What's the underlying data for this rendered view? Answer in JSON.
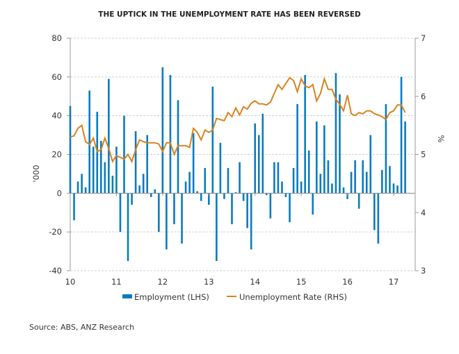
{
  "chart_data": {
    "type": "bar+line",
    "title": "THE UPTICK IN THE UNEMPLOYMENT RATE HAS BEEN REVERSED",
    "source": "Source: ABS, ANZ Research",
    "ylabel_left": "'000",
    "ylabel_right": "%",
    "ylim_left": [
      -40,
      80
    ],
    "ylim_right": [
      3,
      7
    ],
    "yticks_left": [
      "80",
      "60",
      "40",
      "20",
      "0",
      "-20",
      "-40"
    ],
    "yticks_right": [
      "7",
      "6",
      "5",
      "4",
      "3"
    ],
    "xticks": [
      "10",
      "11",
      "12",
      "13",
      "14",
      "15",
      "16",
      "17"
    ],
    "grid": true,
    "legend_position": "bottom",
    "series": [
      {
        "name": "Employment (LHS)",
        "type": "bar",
        "color": "#0a7bbf",
        "values": [
          45,
          -14,
          6,
          10,
          3,
          53,
          24,
          42,
          27,
          16,
          59,
          9,
          24,
          -20,
          40,
          -35,
          -6,
          32,
          4,
          10,
          30,
          -2,
          2,
          -20,
          65,
          -29,
          61,
          -16,
          48,
          -26,
          6,
          11,
          31,
          1,
          -4,
          13,
          -6,
          55,
          -35,
          26,
          -3,
          13,
          -16,
          0.5,
          16,
          -4,
          -18,
          -29,
          36,
          30,
          41,
          -1,
          -13,
          16,
          16,
          6,
          -2,
          -15,
          13,
          46,
          6,
          61,
          22,
          -11,
          37,
          10,
          35,
          17,
          5,
          62,
          51,
          3,
          -3,
          11,
          17,
          -8,
          17,
          11,
          30,
          -19,
          -26,
          12,
          46,
          14,
          5,
          4,
          60,
          37
        ]
      },
      {
        "name": "Unemployment Rate (RHS)",
        "type": "line",
        "color": "#d9821e",
        "values": [
          5.3,
          5.32,
          5.45,
          5.5,
          5.22,
          5.17,
          5.28,
          5.05,
          5.08,
          5.28,
          5.1,
          4.88,
          4.98,
          4.95,
          4.92,
          5.0,
          4.88,
          5.08,
          5.25,
          5.22,
          5.2,
          5.2,
          5.2,
          5.18,
          5.05,
          5.2,
          5.2,
          5.0,
          5.15,
          5.15,
          5.15,
          5.12,
          5.45,
          5.38,
          5.25,
          5.42,
          5.38,
          5.42,
          5.62,
          5.6,
          5.58,
          5.72,
          5.65,
          5.8,
          5.68,
          5.82,
          5.78,
          5.88,
          5.92,
          5.87,
          5.87,
          5.85,
          5.9,
          6.05,
          6.2,
          6.12,
          6.22,
          6.32,
          6.27,
          6.08,
          6.3,
          6.18,
          6.15,
          6.2,
          5.92,
          6.05,
          6.3,
          6.12,
          6.12,
          5.95,
          5.86,
          5.75,
          6.02,
          5.7,
          5.67,
          5.72,
          5.7,
          5.75,
          5.75,
          5.7,
          5.68,
          5.65,
          5.6,
          5.72,
          5.75,
          5.85,
          5.85,
          5.72
        ]
      }
    ]
  }
}
